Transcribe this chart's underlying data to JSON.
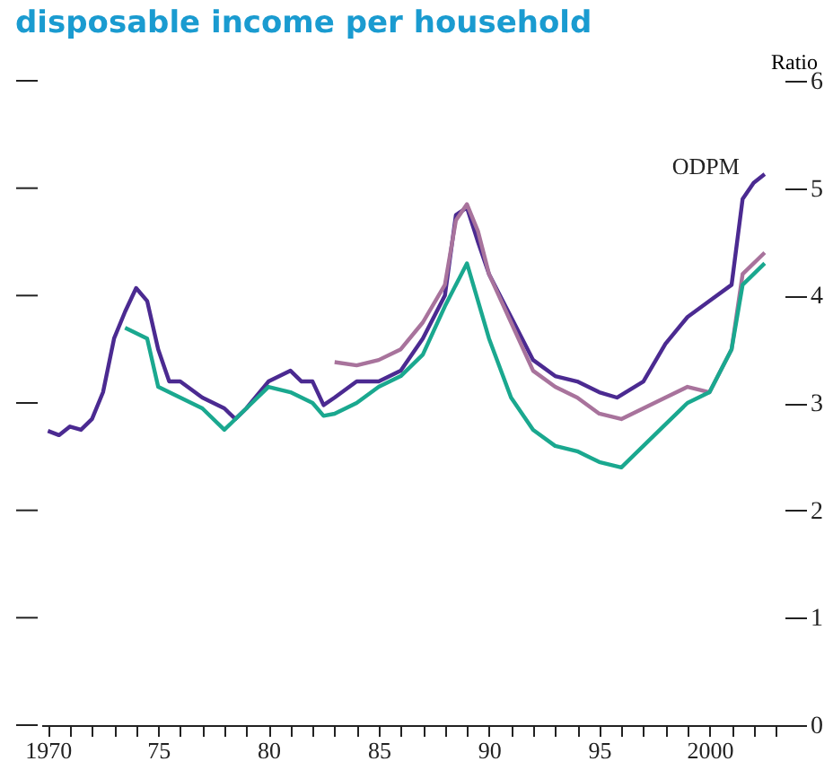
{
  "chart_data": {
    "type": "line",
    "title": "disposable income per household",
    "ylabel": "Ratio",
    "xlim": [
      1969.7,
      2003.4
    ],
    "xticks": [
      {
        "value": 1970,
        "label": "1970"
      },
      {
        "value": 1971,
        "label": null
      },
      {
        "value": 1972,
        "label": null
      },
      {
        "value": 1973,
        "label": null
      },
      {
        "value": 1974,
        "label": null
      },
      {
        "value": 1975,
        "label": "75"
      },
      {
        "value": 1976,
        "label": null
      },
      {
        "value": 1977,
        "label": null
      },
      {
        "value": 1978,
        "label": null
      },
      {
        "value": 1979,
        "label": null
      },
      {
        "value": 1980,
        "label": "80"
      },
      {
        "value": 1981,
        "label": null
      },
      {
        "value": 1982,
        "label": null
      },
      {
        "value": 1983,
        "label": null
      },
      {
        "value": 1984,
        "label": null
      },
      {
        "value": 1985,
        "label": "85"
      },
      {
        "value": 1986,
        "label": null
      },
      {
        "value": 1987,
        "label": null
      },
      {
        "value": 1988,
        "label": null
      },
      {
        "value": 1989,
        "label": null
      },
      {
        "value": 1990,
        "label": "90"
      },
      {
        "value": 1991,
        "label": null
      },
      {
        "value": 1992,
        "label": null
      },
      {
        "value": 1993,
        "label": null
      },
      {
        "value": 1994,
        "label": null
      },
      {
        "value": 1995,
        "label": "95"
      },
      {
        "value": 1996,
        "label": null
      },
      {
        "value": 1997,
        "label": null
      },
      {
        "value": 1998,
        "label": null
      },
      {
        "value": 1999,
        "label": null
      },
      {
        "value": 2000,
        "label": "2000"
      },
      {
        "value": 2001,
        "label": null
      },
      {
        "value": 2002,
        "label": null
      },
      {
        "value": 2003,
        "label": null
      }
    ],
    "ylim": [
      0,
      6
    ],
    "yticks": [
      0,
      1,
      2,
      3,
      4,
      5,
      6
    ],
    "marker": "none",
    "line_style": "solid",
    "series": [
      {
        "name": "ODPM",
        "color": "#4b2a91",
        "x": [
          1970,
          1970.5,
          1971,
          1971.5,
          1972,
          1972.5,
          1973,
          1973.5,
          1974,
          1974.5,
          1975,
          1975.5,
          1976,
          1977,
          1978,
          1978.5,
          1979,
          1980,
          1980.5,
          1981,
          1981.5,
          1982,
          1982.5,
          1983,
          1984,
          1985,
          1986,
          1987,
          1988,
          1988.5,
          1989,
          1989.5,
          1990,
          1991,
          1992,
          1993,
          1994,
          1995,
          1995.8,
          1997,
          1998,
          1999,
          2000,
          2001,
          2001.5,
          2002,
          2002.5
        ],
        "values": [
          2.74,
          2.7,
          2.78,
          2.75,
          2.85,
          3.1,
          3.6,
          3.85,
          4.07,
          3.95,
          3.5,
          3.2,
          3.2,
          3.05,
          2.95,
          2.85,
          2.95,
          3.2,
          3.25,
          3.3,
          3.2,
          3.2,
          2.98,
          3.05,
          3.2,
          3.2,
          3.3,
          3.6,
          4.0,
          4.75,
          4.82,
          4.5,
          4.2,
          3.8,
          3.4,
          3.25,
          3.2,
          3.1,
          3.05,
          3.2,
          3.55,
          3.8,
          3.95,
          4.1,
          4.9,
          5.05,
          5.13
        ]
      },
      {
        "color": "#a8739c",
        "x": [
          1983,
          1984,
          1985,
          1986,
          1987,
          1988,
          1988.5,
          1989,
          1989.5,
          1990,
          1991,
          1992,
          1993,
          1994,
          1995,
          1996,
          1997,
          1998,
          1999,
          2000,
          2001,
          2001.5,
          2002.5
        ],
        "values": [
          3.38,
          3.35,
          3.4,
          3.5,
          3.75,
          4.1,
          4.7,
          4.85,
          4.6,
          4.2,
          3.75,
          3.3,
          3.15,
          3.05,
          2.9,
          2.85,
          2.95,
          3.05,
          3.15,
          3.1,
          3.5,
          4.2,
          4.4
        ]
      },
      {
        "color": "#1aa88f",
        "x": [
          1973.5,
          1974.5,
          1975,
          1976,
          1977,
          1978,
          1979,
          1980,
          1981,
          1982,
          1982.5,
          1983,
          1984,
          1985,
          1986,
          1987,
          1988,
          1989,
          1990,
          1991,
          1992,
          1993,
          1994,
          1995,
          1996,
          1997,
          1998,
          1999,
          2000,
          2001,
          2001.5,
          2002.5
        ],
        "values": [
          3.7,
          3.6,
          3.15,
          3.05,
          2.95,
          2.75,
          2.95,
          3.15,
          3.1,
          3.0,
          2.88,
          2.9,
          3.0,
          3.15,
          3.25,
          3.45,
          3.9,
          4.3,
          3.6,
          3.05,
          2.75,
          2.6,
          2.55,
          2.45,
          2.4,
          2.6,
          2.8,
          3.0,
          3.1,
          3.5,
          4.1,
          4.3
        ]
      }
    ]
  }
}
